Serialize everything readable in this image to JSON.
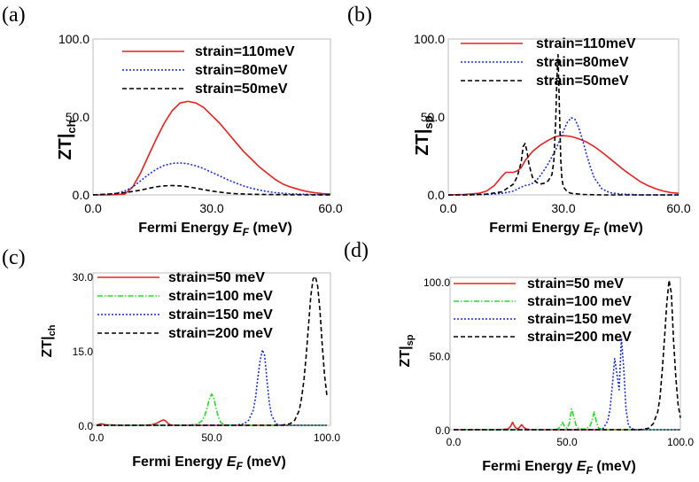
{
  "colors": {
    "red": "#e8201f",
    "blue": "#1a2fd6",
    "green": "#22dd22",
    "black": "#000000",
    "frame": "#bdbdbd"
  },
  "chart_data": [
    {
      "panel": "(a)",
      "type": "line",
      "xlabel_prefix": "Fermi Energy ",
      "xlabel_var": "E",
      "xlabel_sub": "F",
      "xlabel_suffix": " (meV)",
      "ylabel": "ZT|",
      "ylabel_sub": "ch",
      "xlim": [
        0,
        60
      ],
      "ylim": [
        0,
        100
      ],
      "xticks": [
        {
          "v": 0,
          "label": "0.0"
        },
        {
          "v": 30,
          "label": "30.0"
        },
        {
          "v": 60,
          "label": "60.0"
        }
      ],
      "yticks": [
        {
          "v": 0,
          "label": "0.0"
        },
        {
          "v": 50,
          "label": "50.0"
        },
        {
          "v": 100,
          "label": "100.0"
        }
      ],
      "legend": [
        "strain=110meV",
        "strain=80meV",
        "strain=50meV"
      ],
      "series": [
        {
          "name": "strain=110meV",
          "color": "red",
          "dash": "solid",
          "x": [
            0,
            4,
            8,
            10,
            12,
            14,
            16,
            18,
            20,
            22,
            24,
            26,
            28,
            30,
            32,
            34,
            36,
            38,
            40,
            42,
            44,
            46,
            48,
            50,
            52,
            54,
            56,
            58,
            60
          ],
          "y": [
            0,
            0,
            0.5,
            5,
            14,
            25,
            36,
            46,
            54,
            59,
            60,
            59,
            56,
            51,
            46,
            40,
            34,
            28,
            23,
            18,
            14,
            10,
            7,
            5,
            3.5,
            2.2,
            1.4,
            0.8,
            0.5
          ]
        },
        {
          "name": "strain=80meV",
          "color": "blue",
          "dash": "dot",
          "x": [
            0,
            4,
            6,
            8,
            10,
            12,
            14,
            16,
            18,
            20,
            22,
            24,
            26,
            28,
            30,
            32,
            34,
            36,
            38,
            40,
            42,
            44,
            46,
            48,
            50,
            52,
            55,
            58,
            60
          ],
          "y": [
            0,
            0.5,
            1,
            2.5,
            5,
            9,
            13,
            16.5,
            19,
            20.2,
            20.5,
            20,
            18.7,
            16.8,
            14.5,
            12.2,
            9.8,
            7.7,
            5.8,
            4.3,
            3.1,
            2.2,
            1.5,
            1,
            0.7,
            0.5,
            0.3,
            0.2,
            0.2
          ]
        },
        {
          "name": "strain=50meV",
          "color": "black",
          "dash": "dash",
          "x": [
            0,
            4,
            8,
            12,
            14,
            16,
            18,
            20,
            22,
            24,
            26,
            28,
            30,
            32,
            34,
            36,
            40,
            45,
            50,
            55,
            60
          ],
          "y": [
            0,
            0.5,
            1.5,
            3,
            4.2,
            5.2,
            5.8,
            6,
            5.8,
            5.2,
            4.3,
            3.4,
            2.5,
            1.8,
            1.2,
            0.8,
            0.4,
            0.2,
            0.1,
            0.05,
            0
          ]
        }
      ]
    },
    {
      "panel": "(b)",
      "type": "line",
      "xlabel_prefix": "Fermi Energy ",
      "xlabel_var": "E",
      "xlabel_sub": "F",
      "xlabel_suffix": " (meV)",
      "ylabel": "ZT|",
      "ylabel_sub": "sp",
      "xlim": [
        0,
        60
      ],
      "ylim": [
        0,
        100
      ],
      "xticks": [
        {
          "v": 0,
          "label": "0.0"
        },
        {
          "v": 30,
          "label": "30.0"
        },
        {
          "v": 60,
          "label": "60.0"
        }
      ],
      "yticks": [
        {
          "v": 0,
          "label": "0.0"
        },
        {
          "v": 50,
          "label": "50.0"
        },
        {
          "v": 100,
          "label": "100.0"
        }
      ],
      "legend": [
        "strain=110meV",
        "strain=80meV",
        "strain=50meV"
      ],
      "series": [
        {
          "name": "strain=110meV",
          "color": "red",
          "dash": "solid",
          "x": [
            0,
            4,
            8,
            10,
            12,
            14,
            15,
            16,
            17,
            18,
            19,
            20,
            21,
            22,
            24,
            26,
            28,
            30,
            32,
            34,
            36,
            38,
            40,
            42,
            44,
            46,
            48,
            50,
            52,
            54,
            56,
            58,
            60
          ],
          "y": [
            0,
            0.3,
            1,
            2.5,
            6,
            12,
            14.5,
            14.5,
            14.5,
            15.5,
            17.5,
            22,
            25,
            28,
            32,
            35,
            37.5,
            38,
            37.5,
            36,
            34,
            31,
            27.5,
            23.5,
            19.5,
            15.5,
            12,
            8.5,
            6,
            4,
            2.5,
            1.5,
            1
          ]
        },
        {
          "name": "strain=80meV",
          "color": "blue",
          "dash": "dot",
          "x": [
            0,
            5,
            10,
            14,
            17,
            19,
            20,
            21,
            22,
            23,
            24,
            25,
            26,
            27,
            28,
            29,
            30,
            31,
            32,
            33,
            34,
            35,
            36,
            37,
            38,
            40,
            42,
            45,
            50,
            55,
            60
          ],
          "y": [
            0,
            0,
            0.3,
            1,
            2.5,
            5,
            6,
            6.5,
            7.5,
            9.5,
            12.5,
            16,
            20,
            24.5,
            29,
            35,
            41,
            46.5,
            49.5,
            48.5,
            43,
            35,
            26,
            18,
            11,
            4,
            1.5,
            0.5,
            0,
            0,
            0
          ]
        },
        {
          "name": "strain=50meV",
          "color": "black",
          "dash": "dash",
          "x": [
            0,
            5,
            10,
            14,
            17,
            18,
            19,
            19.5,
            20,
            20.5,
            21,
            21.5,
            22,
            23,
            24,
            25,
            26,
            27,
            27.5,
            28,
            28.3,
            28.6,
            29,
            29.3,
            29.6,
            30,
            31,
            32,
            35,
            40,
            60
          ],
          "y": [
            0,
            0,
            0.5,
            2,
            7,
            12,
            21,
            31,
            33,
            28,
            20,
            15,
            11,
            8,
            7,
            7.5,
            9,
            13,
            22,
            48,
            75,
            90,
            50,
            22,
            10,
            5,
            2,
            1,
            0.3,
            0,
            0
          ]
        }
      ]
    },
    {
      "panel": "(c)",
      "type": "line",
      "xlabel_prefix": "Fermi Energy ",
      "xlabel_var": "E",
      "xlabel_sub": "F",
      "xlabel_suffix": " (meV)",
      "ylabel": "ZT|",
      "ylabel_sub": "ch",
      "xlim": [
        0,
        100
      ],
      "ylim": [
        0,
        30
      ],
      "xticks": [
        {
          "v": 0,
          "label": "0.0"
        },
        {
          "v": 50,
          "label": "50.0"
        },
        {
          "v": 100,
          "label": "100.0"
        }
      ],
      "yticks": [
        {
          "v": 0,
          "label": "0.0"
        },
        {
          "v": 15,
          "label": "15.0"
        },
        {
          "v": 30,
          "label": "30.0"
        }
      ],
      "legend": [
        "strain=50 meV",
        "strain=100 meV",
        "strain=150 meV",
        "strain=200 meV"
      ],
      "series": [
        {
          "name": "strain=50 meV",
          "color": "red",
          "dash": "solid",
          "x": [
            0,
            1,
            2,
            4,
            10,
            20,
            24,
            26,
            28,
            29,
            30,
            31,
            32,
            34,
            40,
            100
          ],
          "y": [
            0,
            0.2,
            0.3,
            0.1,
            0,
            0,
            0.1,
            0.4,
            0.9,
            1.1,
            0.9,
            0.4,
            0.1,
            0,
            0,
            0
          ]
        },
        {
          "name": "strain=100 meV",
          "color": "green",
          "dash": "dashdot",
          "x": [
            0,
            40,
            44,
            46,
            47,
            48,
            49,
            50,
            51,
            52,
            53,
            54,
            56,
            60,
            100
          ],
          "y": [
            0,
            0,
            0.3,
            1,
            2,
            3.5,
            5.3,
            6.3,
            5.3,
            3.2,
            1.5,
            0.5,
            0.1,
            0,
            0
          ]
        },
        {
          "name": "strain=150 meV",
          "color": "blue",
          "dash": "dot",
          "x": [
            0,
            60,
            64,
            66,
            68,
            69,
            70,
            71,
            72,
            73,
            74,
            75,
            76,
            78,
            80,
            100
          ],
          "y": [
            0,
            0,
            0.3,
            1,
            3,
            5.5,
            9.5,
            13,
            15.2,
            14,
            9,
            4.5,
            2,
            0.3,
            0,
            0
          ]
        },
        {
          "name": "strain=200 meV",
          "color": "black",
          "dash": "dash",
          "x": [
            0,
            80,
            84,
            86,
            88,
            89,
            90,
            91,
            92,
            93,
            94,
            95,
            96,
            97,
            98,
            99,
            100
          ],
          "y": [
            0,
            0,
            0.3,
            1,
            3,
            5.5,
            9,
            14,
            20,
            26,
            29.5,
            30,
            28,
            23,
            16,
            10,
            6
          ]
        }
      ]
    },
    {
      "panel": "(d)",
      "type": "line",
      "xlabel_prefix": "Fermi Energy ",
      "xlabel_var": "E",
      "xlabel_sub": "F",
      "xlabel_suffix": " (meV)",
      "ylabel": "ZT|",
      "ylabel_sub": "sp",
      "xlim": [
        0,
        100
      ],
      "ylim": [
        0,
        100
      ],
      "xticks": [
        {
          "v": 0,
          "label": "0.0"
        },
        {
          "v": 50,
          "label": "50.0"
        },
        {
          "v": 100,
          "label": "100.0"
        }
      ],
      "yticks": [
        {
          "v": 0,
          "label": "0.0"
        },
        {
          "v": 50,
          "label": "50.0"
        },
        {
          "v": 100,
          "label": "100.0"
        }
      ],
      "legend": [
        "strain=50 meV",
        "strain=100 meV",
        "strain=150 meV",
        "strain=200 meV"
      ],
      "series": [
        {
          "name": "strain=50 meV",
          "color": "red",
          "dash": "solid",
          "x": [
            0,
            20,
            24,
            25,
            26,
            27,
            28,
            29,
            30,
            31,
            32,
            33,
            34,
            36,
            100
          ],
          "y": [
            0,
            0,
            0.5,
            2,
            5,
            2,
            0.5,
            1.5,
            3.5,
            1.5,
            0.5,
            0.3,
            0,
            0,
            0
          ]
        },
        {
          "name": "strain=100 meV",
          "color": "green",
          "dash": "dashdot",
          "x": [
            0,
            44,
            46,
            47,
            48,
            49,
            50,
            51,
            52,
            53,
            54,
            55,
            56,
            58,
            60,
            61,
            62,
            63,
            64,
            66,
            100
          ],
          "y": [
            0,
            0,
            0.5,
            2,
            5,
            2,
            1,
            4,
            14,
            9,
            3,
            1,
            0.5,
            0.5,
            2,
            6,
            12,
            5,
            1,
            0,
            0
          ]
        },
        {
          "name": "strain=150 meV",
          "color": "blue",
          "dash": "dot",
          "x": [
            0,
            64,
            66,
            68,
            69,
            70,
            71,
            72,
            73,
            74,
            75,
            76,
            77,
            78,
            80,
            100
          ],
          "y": [
            0,
            0,
            1,
            6,
            14,
            30,
            48,
            38,
            27,
            62,
            42,
            14,
            4,
            1,
            0,
            0
          ]
        },
        {
          "name": "strain=200 meV",
          "color": "black",
          "dash": "dash",
          "x": [
            0,
            82,
            86,
            88,
            90,
            91,
            92,
            93,
            94,
            95,
            96,
            97,
            98,
            99,
            100
          ],
          "y": [
            0,
            0,
            1,
            4,
            12,
            22,
            40,
            62,
            85,
            101,
            92,
            60,
            35,
            17,
            8
          ]
        }
      ]
    }
  ]
}
